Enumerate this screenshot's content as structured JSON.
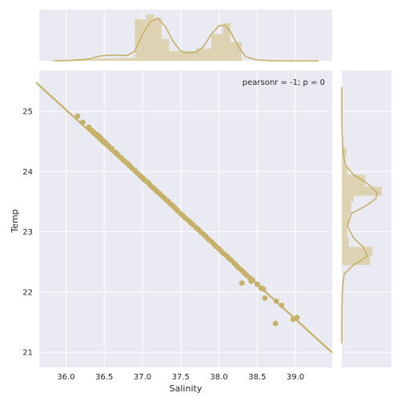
{
  "chart_data": {
    "type": "scatter",
    "xlabel": "Salinity",
    "ylabel": "Temp",
    "annotation": "pearsonr = -1; p = 0",
    "xlim": [
      35.65,
      39.48
    ],
    "ylim": [
      20.75,
      25.68
    ],
    "x_ticks": [
      "36.0",
      "36.5",
      "37.0",
      "37.5",
      "38.0",
      "38.5",
      "39.0"
    ],
    "y_ticks": [
      "21",
      "22",
      "23",
      "24",
      "25"
    ],
    "regression_line": {
      "x": [
        35.65,
        39.48
      ],
      "y": [
        25.48,
        20.97
      ]
    },
    "points": {
      "x": [
        36.15,
        36.22,
        36.3,
        36.33,
        36.36,
        36.4,
        36.43,
        36.46,
        36.5,
        36.53,
        36.56,
        36.6,
        36.65,
        36.68,
        36.72,
        36.76,
        36.8,
        36.83,
        36.86,
        36.9,
        36.94,
        36.97,
        37.0,
        37.02,
        37.05,
        37.08,
        37.1,
        37.13,
        37.16,
        37.19,
        37.22,
        37.25,
        37.28,
        37.31,
        37.34,
        37.37,
        37.4,
        37.43,
        37.46,
        37.5,
        37.53,
        37.56,
        37.6,
        37.63,
        37.66,
        37.7,
        37.73,
        37.76,
        37.8,
        37.83,
        37.86,
        37.9,
        37.93,
        37.96,
        38.0,
        38.03,
        38.06,
        38.1,
        38.13,
        38.16,
        38.2,
        38.23,
        38.26,
        38.3,
        38.33,
        38.36,
        38.4,
        38.44,
        38.5,
        38.55,
        38.58,
        38.3,
        38.42,
        38.6,
        38.75,
        38.82,
        38.74,
        38.97,
        39.02
      ],
      "y": [
        24.92,
        24.82,
        24.74,
        24.69,
        24.66,
        24.62,
        24.59,
        24.55,
        24.5,
        24.46,
        24.42,
        24.38,
        24.32,
        24.28,
        24.23,
        24.18,
        24.14,
        24.1,
        24.06,
        24.02,
        23.97,
        23.93,
        23.9,
        23.87,
        23.84,
        23.81,
        23.78,
        23.74,
        23.71,
        23.67,
        23.64,
        23.6,
        23.57,
        23.53,
        23.5,
        23.46,
        23.43,
        23.39,
        23.35,
        23.3,
        23.27,
        23.23,
        23.19,
        23.15,
        23.12,
        23.07,
        23.04,
        23.0,
        22.96,
        22.92,
        22.88,
        22.84,
        22.8,
        22.76,
        22.72,
        22.68,
        22.64,
        22.6,
        22.56,
        22.53,
        22.48,
        22.44,
        22.4,
        22.36,
        22.32,
        22.28,
        22.24,
        22.2,
        22.13,
        22.07,
        22.05,
        22.15,
        22.18,
        21.9,
        21.85,
        21.78,
        21.48,
        21.55,
        21.58
      ]
    },
    "marginal_x": {
      "bins": [
        35.8,
        36.1,
        36.4,
        36.7,
        36.9,
        37.05,
        37.15,
        37.25,
        37.35,
        37.5,
        37.7,
        37.9,
        38.05,
        38.15,
        38.3
      ],
      "counts": [
        0.02,
        0.04,
        0.05,
        0.06,
        0.85,
        0.95,
        0.88,
        0.45,
        0.2,
        0.2,
        0.25,
        0.55,
        0.78,
        0.38
      ]
    },
    "marginal_x_kde": {
      "x": [
        35.85,
        36.1,
        36.3,
        36.45,
        36.6,
        36.8,
        36.9,
        37.0,
        37.1,
        37.2,
        37.3,
        37.4,
        37.5,
        37.6,
        37.7,
        37.8,
        37.9,
        38.0,
        38.08,
        38.15,
        38.25,
        38.35,
        38.5,
        38.7,
        39.0,
        39.3
      ],
      "y": [
        0.0,
        0.01,
        0.04,
        0.1,
        0.12,
        0.11,
        0.2,
        0.55,
        0.8,
        0.88,
        0.7,
        0.4,
        0.2,
        0.16,
        0.18,
        0.3,
        0.55,
        0.72,
        0.73,
        0.6,
        0.3,
        0.08,
        0.02,
        0.0,
        0.0,
        0.0
      ]
    },
    "marginal_y": {
      "bins": [
        22.45,
        22.6,
        22.75,
        22.9,
        23.1,
        23.3,
        23.5,
        23.6,
        23.75,
        23.95,
        24.1,
        24.25,
        24.4
      ],
      "counts": [
        0.6,
        0.65,
        0.15,
        0.12,
        0.15,
        0.2,
        0.25,
        0.85,
        0.5,
        0.12,
        0.05,
        0.1
      ]
    },
    "marginal_y_kde": {
      "y": [
        21.15,
        21.5,
        22.0,
        22.3,
        22.45,
        22.6,
        22.75,
        22.9,
        23.1,
        23.3,
        23.45,
        23.55,
        23.65,
        23.8,
        23.95,
        24.1,
        24.3,
        24.6,
        24.9,
        25.2,
        25.4
      ],
      "x": [
        0.0,
        0.0,
        0.01,
        0.05,
        0.25,
        0.55,
        0.45,
        0.25,
        0.12,
        0.2,
        0.55,
        0.72,
        0.75,
        0.55,
        0.25,
        0.08,
        0.03,
        0.01,
        0.0,
        0.0,
        0.0
      ]
    }
  },
  "colors": {
    "accent": "#c5b16a",
    "hist_fill": "#ddd3b3",
    "panel_bg": "#eaeaf2",
    "grid": "#ffffff"
  }
}
